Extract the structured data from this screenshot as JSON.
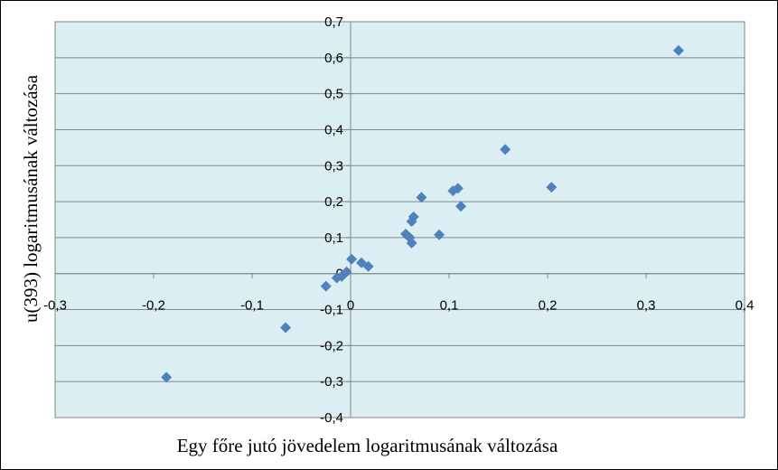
{
  "chart_data": {
    "type": "scatter",
    "title": "",
    "xlabel": "Egy főre jutó jövedelem logaritmusának változása",
    "ylabel": "u(393) logaritmusának változása",
    "xlim": [
      -0.3,
      0.4
    ],
    "ylim": [
      -0.4,
      0.7
    ],
    "x_ticks": [
      -0.3,
      -0.2,
      -0.1,
      0,
      0.1,
      0.2,
      0.3,
      0.4
    ],
    "y_ticks": [
      -0.4,
      -0.3,
      -0.2,
      -0.1,
      0,
      0.1,
      0.2,
      0.3,
      0.4,
      0.5,
      0.6,
      0.7
    ],
    "x_tick_labels": [
      "-0,3",
      "-0,2",
      "-0,1",
      "0",
      "0,1",
      "0,2",
      "0,3",
      "0,4"
    ],
    "y_tick_labels": [
      "-0,4",
      "-0,3",
      "-0,2",
      "-0,1",
      "0",
      "0,1",
      "0,2",
      "0,3",
      "0,4",
      "0,5",
      "0,6",
      "0,7"
    ],
    "grid": "horizontal",
    "legend": "none",
    "colors": {
      "plot_bg": "#dbeef4",
      "marker": "#4f81bd",
      "grid": "#868686",
      "axis": "#868686"
    },
    "series": [
      {
        "marker": "diamond",
        "points": [
          [
            -0.187,
            -0.288
          ],
          [
            -0.066,
            -0.15
          ],
          [
            -0.025,
            -0.035
          ],
          [
            -0.014,
            -0.012
          ],
          [
            -0.009,
            -0.008
          ],
          [
            -0.004,
            0.005
          ],
          [
            0.001,
            0.04
          ],
          [
            0.011,
            0.03
          ],
          [
            0.018,
            0.02
          ],
          [
            0.056,
            0.11
          ],
          [
            0.06,
            0.1
          ],
          [
            0.062,
            0.085
          ],
          [
            0.062,
            0.145
          ],
          [
            0.064,
            0.158
          ],
          [
            0.072,
            0.212
          ],
          [
            0.09,
            0.108
          ],
          [
            0.104,
            0.23
          ],
          [
            0.109,
            0.237
          ],
          [
            0.112,
            0.187
          ],
          [
            0.157,
            0.345
          ],
          [
            0.204,
            0.24
          ],
          [
            0.333,
            0.62
          ]
        ]
      }
    ]
  }
}
